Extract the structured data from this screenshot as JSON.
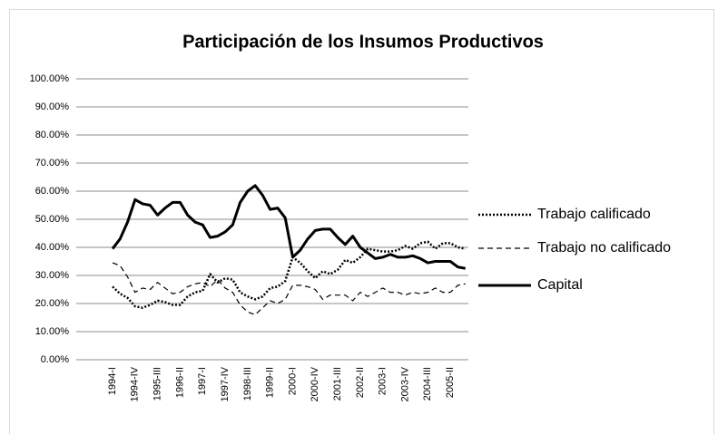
{
  "chart_data": {
    "type": "line",
    "title": "Participación de los Insumos Productivos",
    "categories": [
      "1994-I",
      null,
      null,
      "1994-IV",
      null,
      null,
      "1995-III",
      null,
      null,
      "1996-II",
      null,
      null,
      "1997-I",
      null,
      null,
      "1997-IV",
      null,
      null,
      "1998-III",
      null,
      null,
      "1999-II",
      null,
      null,
      "2000-I",
      null,
      null,
      "2000-IV",
      null,
      null,
      "2001-III",
      null,
      null,
      "2002-II",
      null,
      null,
      "2003-I",
      null,
      null,
      "2003-IV",
      null,
      null,
      "2004-III",
      null,
      null,
      "2005-II",
      null,
      null
    ],
    "series": [
      {
        "name": "Trabajo calificado",
        "color": "#000000",
        "line_style": "dotted",
        "values": [
          26,
          23.5,
          22,
          19,
          18.5,
          19.5,
          21,
          20.5,
          19.5,
          19.5,
          22.5,
          24,
          24.5,
          30.5,
          27.5,
          29,
          28.5,
          24,
          22.5,
          21.5,
          22.5,
          25.5,
          26,
          28,
          36.5,
          34.5,
          31.5,
          29,
          31.5,
          30.5,
          32,
          35.5,
          34.5,
          36.5,
          39.5,
          39,
          38.5,
          38.5,
          39,
          40.5,
          39.5,
          41.5,
          42,
          39.5,
          41.5,
          41.5,
          40,
          39.5
        ]
      },
      {
        "name": "Trabajo no calificado",
        "color": "#000000",
        "line_style": "dashed",
        "values": [
          34.5,
          33.5,
          29.5,
          24,
          25.5,
          25,
          27.5,
          25.5,
          23.5,
          24,
          26,
          27,
          27.5,
          26,
          28.5,
          25.5,
          24,
          19.5,
          17,
          16,
          18.5,
          21,
          20,
          21.5,
          26.5,
          26.5,
          26,
          25,
          21.5,
          23,
          23,
          23,
          21,
          24,
          22.5,
          24,
          25.5,
          24,
          24,
          23,
          24,
          23.5,
          24,
          25.5,
          24,
          24,
          26.5,
          27
        ]
      },
      {
        "name": "Capital",
        "color": "#000000",
        "line_style": "solid",
        "values": [
          39.5,
          43,
          49,
          57,
          55.5,
          55,
          51.5,
          54,
          56,
          56,
          51.5,
          49,
          48,
          43.5,
          44,
          45.5,
          48,
          56,
          60,
          62,
          58.5,
          53.5,
          54,
          50.5,
          36.5,
          39,
          43,
          46,
          46.5,
          46.5,
          43.5,
          41,
          44,
          40,
          38,
          36,
          36.5,
          37.5,
          36.5,
          36.5,
          37,
          36,
          34.5,
          35,
          35,
          35,
          33,
          32.5
        ]
      }
    ],
    "ylim": [
      0,
      100
    ],
    "yticks": [
      {
        "value": 0,
        "label": "0.00%"
      },
      {
        "value": 10,
        "label": "10.00%"
      },
      {
        "value": 20,
        "label": "20.00%"
      },
      {
        "value": 30,
        "label": "30.00%"
      },
      {
        "value": 40,
        "label": "40.00%"
      },
      {
        "value": 50,
        "label": "50.00%"
      },
      {
        "value": 60,
        "label": "60.00%"
      },
      {
        "value": 70,
        "label": "70.00%"
      },
      {
        "value": 80,
        "label": "80.00%"
      },
      {
        "value": 90,
        "label": "90.00%"
      },
      {
        "value": 100,
        "label": "100.00%"
      }
    ],
    "grid": true,
    "legend": "right"
  }
}
